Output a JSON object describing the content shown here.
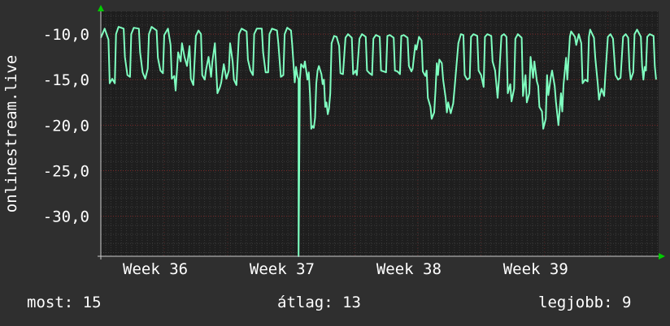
{
  "colors": {
    "background": "#2f2f2f",
    "plot_bg": "#1e1e1e",
    "line": "#7fffc0",
    "grid_minor": "#3a3a3a",
    "grid_major_y": "#7a2828",
    "axis": "#cccccc",
    "arrow": "#00cc00",
    "text": "#ffffff"
  },
  "chart_data": {
    "type": "line",
    "ylabel": "onlinestream.live",
    "ylim": [
      -34.4,
      -7.5
    ],
    "xlim": [
      0,
      4.4
    ],
    "yticks": [
      -10.0,
      -15.0,
      -20.0,
      -25.0,
      -30.0
    ],
    "ytick_labels": [
      "-10,0",
      "-15,0",
      "-20,0",
      "-25,0",
      "-30,0"
    ],
    "xticks": [
      0.43,
      1.43,
      2.43,
      3.43
    ],
    "xtick_labels": [
      "Week 36",
      "Week 37",
      "Week 38",
      "Week 39"
    ],
    "grid": true,
    "series": [
      {
        "points": [
          [
            0.0,
            -10.4
          ],
          [
            0.03,
            -9.4
          ],
          [
            0.06,
            -10.6
          ],
          [
            0.07,
            -15.4
          ],
          [
            0.09,
            -14.9
          ],
          [
            0.11,
            -15.4
          ],
          [
            0.12,
            -10.0
          ],
          [
            0.14,
            -9.2
          ],
          [
            0.18,
            -9.4
          ],
          [
            0.19,
            -12.5
          ],
          [
            0.21,
            -14.5
          ],
          [
            0.23,
            -14.7
          ],
          [
            0.24,
            -10.0
          ],
          [
            0.26,
            -9.3
          ],
          [
            0.3,
            -9.4
          ],
          [
            0.31,
            -12.0
          ],
          [
            0.33,
            -14.2
          ],
          [
            0.35,
            -14.9
          ],
          [
            0.37,
            -13.8
          ],
          [
            0.38,
            -10.0
          ],
          [
            0.4,
            -9.2
          ],
          [
            0.44,
            -9.6
          ],
          [
            0.45,
            -12.6
          ],
          [
            0.47,
            -14.0
          ],
          [
            0.49,
            -14.3
          ],
          [
            0.5,
            -10.1
          ],
          [
            0.53,
            -9.4
          ],
          [
            0.55,
            -11.2
          ],
          [
            0.56,
            -14.9
          ],
          [
            0.58,
            -14.6
          ],
          [
            0.59,
            -16.2
          ],
          [
            0.61,
            -12.0
          ],
          [
            0.63,
            -13.0
          ],
          [
            0.64,
            -11.0
          ],
          [
            0.66,
            -12.5
          ],
          [
            0.68,
            -13.5
          ],
          [
            0.7,
            -11.3
          ],
          [
            0.71,
            -14.9
          ],
          [
            0.73,
            -15.6
          ],
          [
            0.75,
            -10.2
          ],
          [
            0.77,
            -9.6
          ],
          [
            0.79,
            -10.0
          ],
          [
            0.8,
            -14.5
          ],
          [
            0.82,
            -15.0
          ],
          [
            0.83,
            -13.9
          ],
          [
            0.85,
            -12.5
          ],
          [
            0.87,
            -14.7
          ],
          [
            0.88,
            -13.0
          ],
          [
            0.9,
            -11.0
          ],
          [
            0.92,
            -16.5
          ],
          [
            0.94,
            -15.8
          ],
          [
            0.95,
            -15.3
          ],
          [
            0.97,
            -13.3
          ],
          [
            0.99,
            -14.9
          ],
          [
            1.01,
            -14.0
          ],
          [
            1.02,
            -11.0
          ],
          [
            1.04,
            -13.0
          ],
          [
            1.05,
            -15.0
          ],
          [
            1.07,
            -15.6
          ],
          [
            1.09,
            -10.0
          ],
          [
            1.11,
            -9.4
          ],
          [
            1.15,
            -9.7
          ],
          [
            1.16,
            -12.8
          ],
          [
            1.18,
            -14.0
          ],
          [
            1.2,
            -14.5
          ],
          [
            1.21,
            -10.0
          ],
          [
            1.23,
            -9.4
          ],
          [
            1.27,
            -9.4
          ],
          [
            1.28,
            -12.0
          ],
          [
            1.3,
            -14.2
          ],
          [
            1.32,
            -14.2
          ],
          [
            1.33,
            -10.0
          ],
          [
            1.35,
            -9.4
          ],
          [
            1.39,
            -9.6
          ],
          [
            1.4,
            -11.0
          ],
          [
            1.42,
            -14.7
          ],
          [
            1.44,
            -14.5
          ],
          [
            1.45,
            -10.0
          ],
          [
            1.47,
            -9.3
          ],
          [
            1.5,
            -9.6
          ],
          [
            1.51,
            -11.2
          ],
          [
            1.53,
            -15.3
          ],
          [
            1.54,
            -13.6
          ],
          [
            1.55,
            -14.6
          ],
          [
            1.56,
            -15.0
          ],
          [
            1.56,
            -34.4
          ],
          [
            1.57,
            -15.0
          ],
          [
            1.58,
            -13.3
          ],
          [
            1.6,
            -13.7
          ],
          [
            1.61,
            -13.0
          ],
          [
            1.63,
            -15.0
          ],
          [
            1.64,
            -14.2
          ],
          [
            1.65,
            -16.5
          ],
          [
            1.66,
            -20.4
          ],
          [
            1.67,
            -20.1
          ],
          [
            1.68,
            -20.3
          ],
          [
            1.69,
            -19.2
          ],
          [
            1.7,
            -15.4
          ],
          [
            1.71,
            -14.0
          ],
          [
            1.72,
            -13.5
          ],
          [
            1.74,
            -14.4
          ],
          [
            1.75,
            -15.5
          ],
          [
            1.76,
            -15.0
          ],
          [
            1.77,
            -18.0
          ],
          [
            1.78,
            -17.5
          ],
          [
            1.79,
            -18.8
          ],
          [
            1.8,
            -18.2
          ],
          [
            1.81,
            -16.5
          ],
          [
            1.82,
            -11.0
          ],
          [
            1.84,
            -10.2
          ],
          [
            1.86,
            -10.3
          ],
          [
            1.88,
            -11.3
          ],
          [
            1.89,
            -14.3
          ],
          [
            1.91,
            -14.4
          ],
          [
            1.93,
            -10.4
          ],
          [
            1.95,
            -10.0
          ],
          [
            1.98,
            -10.4
          ],
          [
            1.99,
            -14.4
          ],
          [
            2.01,
            -14.0
          ],
          [
            2.02,
            -14.5
          ],
          [
            2.04,
            -10.5
          ],
          [
            2.06,
            -10.0
          ],
          [
            2.09,
            -10.3
          ],
          [
            2.1,
            -14.0
          ],
          [
            2.12,
            -14.3
          ],
          [
            2.14,
            -14.5
          ],
          [
            2.15,
            -10.5
          ],
          [
            2.17,
            -10.1
          ],
          [
            2.2,
            -10.3
          ],
          [
            2.21,
            -14.0
          ],
          [
            2.23,
            -14.1
          ],
          [
            2.25,
            -14.2
          ],
          [
            2.26,
            -10.2
          ],
          [
            2.28,
            -10.1
          ],
          [
            2.31,
            -10.4
          ],
          [
            2.32,
            -14.0
          ],
          [
            2.34,
            -14.1
          ],
          [
            2.36,
            -14.4
          ],
          [
            2.37,
            -10.2
          ],
          [
            2.39,
            -10.1
          ],
          [
            2.42,
            -10.4
          ],
          [
            2.43,
            -13.5
          ],
          [
            2.45,
            -14.1
          ],
          [
            2.46,
            -13.8
          ],
          [
            2.48,
            -11.2
          ],
          [
            2.49,
            -11.7
          ],
          [
            2.51,
            -10.3
          ],
          [
            2.53,
            -10.7
          ],
          [
            2.54,
            -14.1
          ],
          [
            2.56,
            -14.6
          ],
          [
            2.57,
            -14.0
          ],
          [
            2.58,
            -17.0
          ],
          [
            2.6,
            -18.0
          ],
          [
            2.61,
            -19.3
          ],
          [
            2.63,
            -18.6
          ],
          [
            2.64,
            -16.2
          ],
          [
            2.65,
            -13.2
          ],
          [
            2.66,
            -14.5
          ],
          [
            2.67,
            -12.8
          ],
          [
            2.69,
            -13.2
          ],
          [
            2.7,
            -15.0
          ],
          [
            2.72,
            -17.0
          ],
          [
            2.73,
            -18.6
          ],
          [
            2.74,
            -17.5
          ],
          [
            2.76,
            -18.7
          ],
          [
            2.78,
            -17.6
          ],
          [
            2.79,
            -16.0
          ],
          [
            2.8,
            -14.4
          ],
          [
            2.82,
            -11.0
          ],
          [
            2.84,
            -10.0
          ],
          [
            2.86,
            -10.1
          ],
          [
            2.87,
            -14.5
          ],
          [
            2.89,
            -15.0
          ],
          [
            2.91,
            -14.8
          ],
          [
            2.92,
            -10.3
          ],
          [
            2.94,
            -10.0
          ],
          [
            2.97,
            -10.2
          ],
          [
            2.98,
            -14.0
          ],
          [
            3.0,
            -14.5
          ],
          [
            3.02,
            -15.8
          ],
          [
            3.03,
            -10.3
          ],
          [
            3.05,
            -10.0
          ],
          [
            3.08,
            -10.2
          ],
          [
            3.09,
            -13.0
          ],
          [
            3.11,
            -14.0
          ],
          [
            3.13,
            -17.0
          ],
          [
            3.14,
            -15.0
          ],
          [
            3.16,
            -10.2
          ],
          [
            3.18,
            -10.0
          ],
          [
            3.2,
            -10.3
          ],
          [
            3.21,
            -16.5
          ],
          [
            3.23,
            -15.5
          ],
          [
            3.24,
            -17.4
          ],
          [
            3.26,
            -16.0
          ],
          [
            3.27,
            -10.5
          ],
          [
            3.29,
            -10.0
          ],
          [
            3.32,
            -10.4
          ],
          [
            3.33,
            -16.8
          ],
          [
            3.35,
            -14.5
          ],
          [
            3.36,
            -17.5
          ],
          [
            3.38,
            -16.5
          ],
          [
            3.39,
            -12.5
          ],
          [
            3.41,
            -14.8
          ],
          [
            3.42,
            -13.0
          ],
          [
            3.44,
            -15.2
          ],
          [
            3.45,
            -15.7
          ],
          [
            3.46,
            -18.0
          ],
          [
            3.48,
            -18.5
          ],
          [
            3.49,
            -20.4
          ],
          [
            3.51,
            -19.3
          ],
          [
            3.52,
            -14.5
          ],
          [
            3.53,
            -16.7
          ],
          [
            3.55,
            -14.7
          ],
          [
            3.56,
            -14.0
          ],
          [
            3.58,
            -15.7
          ],
          [
            3.59,
            -17.4
          ],
          [
            3.61,
            -20.0
          ],
          [
            3.63,
            -16.5
          ],
          [
            3.64,
            -18.5
          ],
          [
            3.65,
            -15.5
          ],
          [
            3.67,
            -12.6
          ],
          [
            3.68,
            -15.0
          ],
          [
            3.7,
            -10.3
          ],
          [
            3.71,
            -9.7
          ],
          [
            3.74,
            -10.3
          ],
          [
            3.75,
            -11.2
          ],
          [
            3.77,
            -10.0
          ],
          [
            3.79,
            -11.0
          ],
          [
            3.8,
            -15.4
          ],
          [
            3.82,
            -15.0
          ],
          [
            3.84,
            -15.2
          ],
          [
            3.85,
            -10.3
          ],
          [
            3.86,
            -9.5
          ],
          [
            3.89,
            -10.4
          ],
          [
            3.9,
            -12.5
          ],
          [
            3.92,
            -15.5
          ],
          [
            3.93,
            -17.2
          ],
          [
            3.95,
            -16.0
          ],
          [
            3.97,
            -16.8
          ],
          [
            3.98,
            -14.5
          ],
          [
            4.0,
            -10.3
          ],
          [
            4.02,
            -10.0
          ],
          [
            4.04,
            -10.5
          ],
          [
            4.06,
            -14.5
          ],
          [
            4.08,
            -15.0
          ],
          [
            4.1,
            -14.8
          ],
          [
            4.12,
            -10.3
          ],
          [
            4.14,
            -10.0
          ],
          [
            4.16,
            -10.4
          ],
          [
            4.17,
            -13.7
          ],
          [
            4.18,
            -15.0
          ],
          [
            4.2,
            -14.2
          ],
          [
            4.21,
            -10.0
          ],
          [
            4.23,
            -9.5
          ],
          [
            4.26,
            -10.3
          ],
          [
            4.27,
            -13.5
          ],
          [
            4.28,
            -15.0
          ],
          [
            4.29,
            -13.6
          ],
          [
            4.3,
            -14.0
          ],
          [
            4.31,
            -10.3
          ],
          [
            4.33,
            -10.0
          ],
          [
            4.36,
            -10.2
          ],
          [
            4.37,
            -13.5
          ],
          [
            4.38,
            -15.0
          ]
        ]
      }
    ]
  },
  "stats": {
    "current_label": "most: 15",
    "average_label": "átlag: 13",
    "best_label": "legjobb: 9"
  }
}
